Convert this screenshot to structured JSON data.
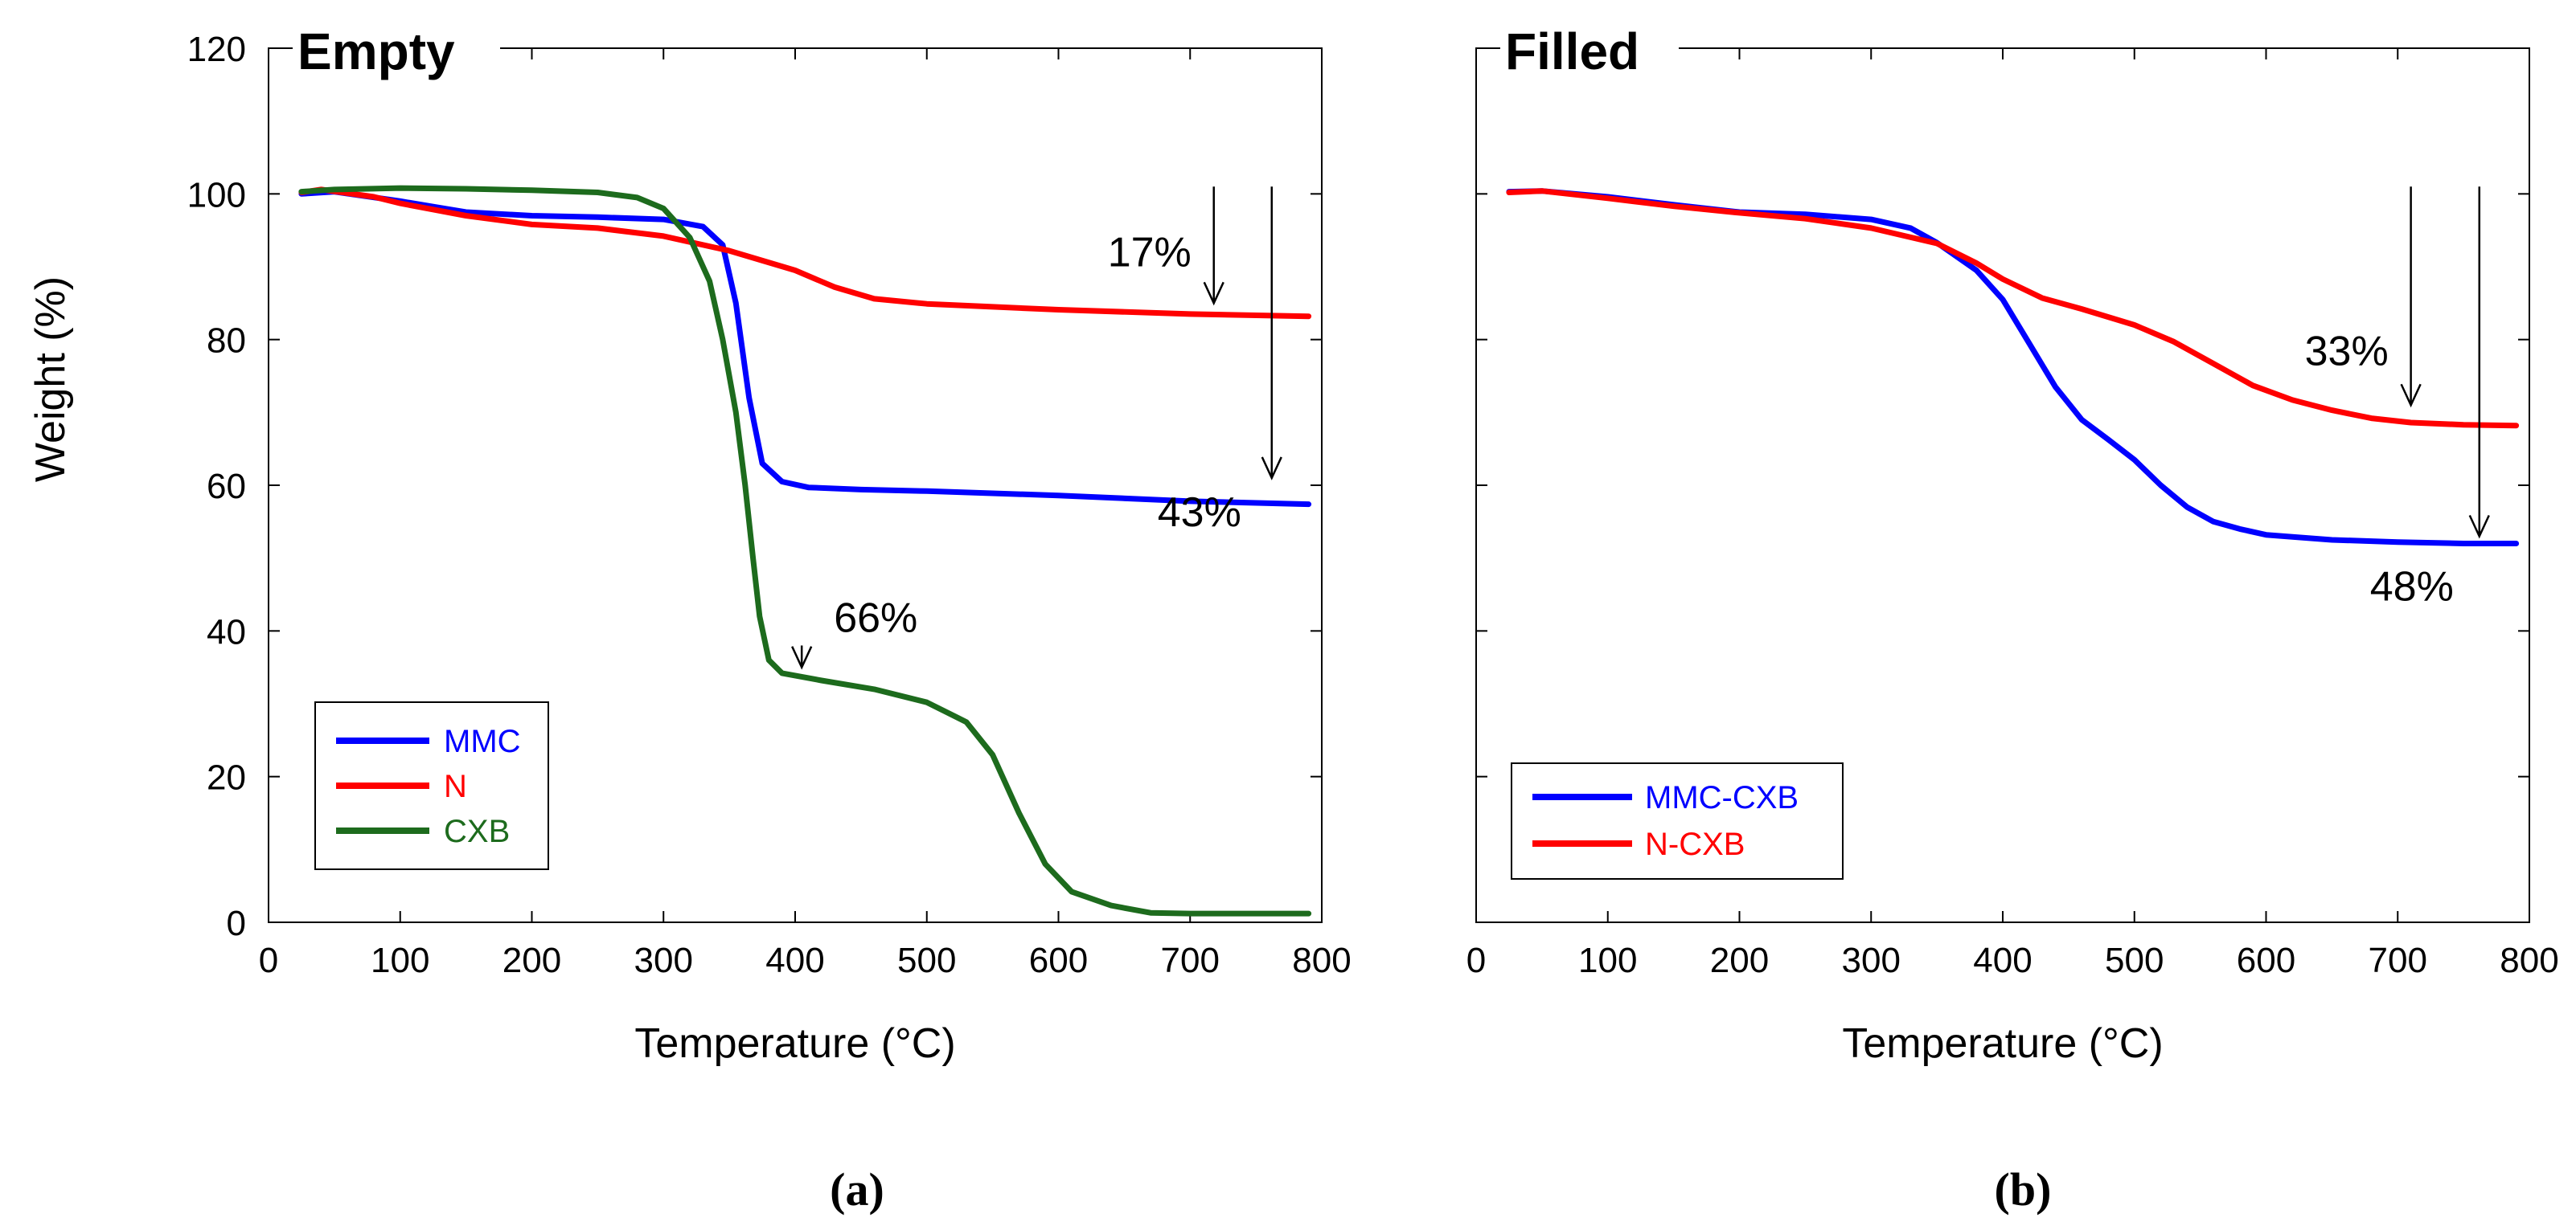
{
  "chart_data": [
    {
      "type": "line",
      "title": "Empty",
      "caption": "(a)",
      "xlabel": "Temperature (°C)",
      "ylabel": "Weight (%)",
      "xlim": [
        0,
        800
      ],
      "ylim": [
        0,
        120
      ],
      "xticks": [
        0,
        100,
        200,
        300,
        400,
        500,
        600,
        700,
        800
      ],
      "yticks": [
        0,
        20,
        40,
        60,
        80,
        100,
        120
      ],
      "grid": false,
      "legend": "bottom-left",
      "series": [
        {
          "name": "MMC",
          "color": "#0000ff",
          "points": [
            [
              25,
              100
            ],
            [
              50,
              100.3
            ],
            [
              100,
              99
            ],
            [
              150,
              97.5
            ],
            [
              200,
              97
            ],
            [
              250,
              96.8
            ],
            [
              300,
              96.5
            ],
            [
              330,
              95.5
            ],
            [
              345,
              93
            ],
            [
              355,
              85
            ],
            [
              365,
              72
            ],
            [
              375,
              63
            ],
            [
              390,
              60.5
            ],
            [
              410,
              59.7
            ],
            [
              450,
              59.4
            ],
            [
              500,
              59.2
            ],
            [
              600,
              58.6
            ],
            [
              700,
              57.8
            ],
            [
              790,
              57.4
            ]
          ]
        },
        {
          "name": "N",
          "color": "#ff0000",
          "points": [
            [
              25,
              100.2
            ],
            [
              40,
              100.6
            ],
            [
              80,
              99.6
            ],
            [
              100,
              98.7
            ],
            [
              150,
              97
            ],
            [
              200,
              95.8
            ],
            [
              250,
              95.3
            ],
            [
              300,
              94.2
            ],
            [
              350,
              92.2
            ],
            [
              400,
              89.5
            ],
            [
              430,
              87.2
            ],
            [
              460,
              85.6
            ],
            [
              500,
              84.9
            ],
            [
              550,
              84.5
            ],
            [
              600,
              84.1
            ],
            [
              700,
              83.5
            ],
            [
              790,
              83.2
            ]
          ]
        },
        {
          "name": "CXB",
          "color": "#1d6b1d",
          "points": [
            [
              25,
              100.3
            ],
            [
              50,
              100.6
            ],
            [
              100,
              100.8
            ],
            [
              150,
              100.7
            ],
            [
              200,
              100.5
            ],
            [
              250,
              100.2
            ],
            [
              280,
              99.5
            ],
            [
              300,
              98
            ],
            [
              320,
              94
            ],
            [
              335,
              88
            ],
            [
              345,
              80
            ],
            [
              355,
              70
            ],
            [
              362,
              60
            ],
            [
              368,
              50
            ],
            [
              373,
              42
            ],
            [
              380,
              36
            ],
            [
              390,
              34.2
            ],
            [
              420,
              33.2
            ],
            [
              460,
              32
            ],
            [
              500,
              30.2
            ],
            [
              530,
              27.5
            ],
            [
              550,
              23
            ],
            [
              570,
              15
            ],
            [
              590,
              8
            ],
            [
              610,
              4.2
            ],
            [
              640,
              2.3
            ],
            [
              670,
              1.3
            ],
            [
              700,
              1.2
            ],
            [
              790,
              1.2
            ]
          ]
        }
      ],
      "annotations": [
        {
          "text": "17%",
          "arrow_x": 718,
          "arrow_from": 101,
          "arrow_to": 85
        },
        {
          "text": "43%",
          "arrow_x": 762,
          "arrow_from": 101,
          "arrow_to": 61
        },
        {
          "text": "66%",
          "arrow_x": 405,
          "arrow_from": 38,
          "arrow_to": 35
        }
      ]
    },
    {
      "type": "line",
      "title": "Filled",
      "caption": "(b)",
      "xlabel": "Temperature (°C)",
      "ylabel": "",
      "xlim": [
        0,
        800
      ],
      "ylim": [
        0,
        120
      ],
      "xticks": [
        0,
        100,
        200,
        300,
        400,
        500,
        600,
        700,
        800
      ],
      "yticks": [
        0,
        20,
        40,
        60,
        80,
        100,
        120
      ],
      "grid": false,
      "legend": "bottom-left",
      "series": [
        {
          "name": "MMC-CXB",
          "color": "#0000ff",
          "points": [
            [
              25,
              100.3
            ],
            [
              50,
              100.4
            ],
            [
              100,
              99.6
            ],
            [
              150,
              98.5
            ],
            [
              200,
              97.5
            ],
            [
              250,
              97.2
            ],
            [
              300,
              96.5
            ],
            [
              330,
              95.3
            ],
            [
              350,
              93.3
            ],
            [
              380,
              89.5
            ],
            [
              400,
              85.5
            ],
            [
              420,
              79.5
            ],
            [
              440,
              73.5
            ],
            [
              460,
              69
            ],
            [
              480,
              66.3
            ],
            [
              500,
              63.5
            ],
            [
              520,
              60
            ],
            [
              540,
              57
            ],
            [
              560,
              55
            ],
            [
              580,
              54
            ],
            [
              600,
              53.2
            ],
            [
              650,
              52.5
            ],
            [
              700,
              52.2
            ],
            [
              750,
              52
            ],
            [
              790,
              52
            ]
          ]
        },
        {
          "name": "N-CXB",
          "color": "#ff0000",
          "points": [
            [
              25,
              100.2
            ],
            [
              50,
              100.4
            ],
            [
              100,
              99.4
            ],
            [
              150,
              98.3
            ],
            [
              200,
              97.4
            ],
            [
              250,
              96.6
            ],
            [
              300,
              95.3
            ],
            [
              350,
              93.2
            ],
            [
              380,
              90.5
            ],
            [
              400,
              88.3
            ],
            [
              430,
              85.7
            ],
            [
              460,
              84.2
            ],
            [
              500,
              82
            ],
            [
              530,
              79.7
            ],
            [
              560,
              76.7
            ],
            [
              590,
              73.7
            ],
            [
              620,
              71.7
            ],
            [
              650,
              70.3
            ],
            [
              680,
              69.2
            ],
            [
              710,
              68.6
            ],
            [
              750,
              68.3
            ],
            [
              790,
              68.2
            ]
          ]
        }
      ],
      "annotations": [
        {
          "text": "33%",
          "arrow_x": 710,
          "arrow_from": 101,
          "arrow_to": 71
        },
        {
          "text": "48%",
          "arrow_x": 762,
          "arrow_from": 101,
          "arrow_to": 53
        }
      ]
    }
  ]
}
